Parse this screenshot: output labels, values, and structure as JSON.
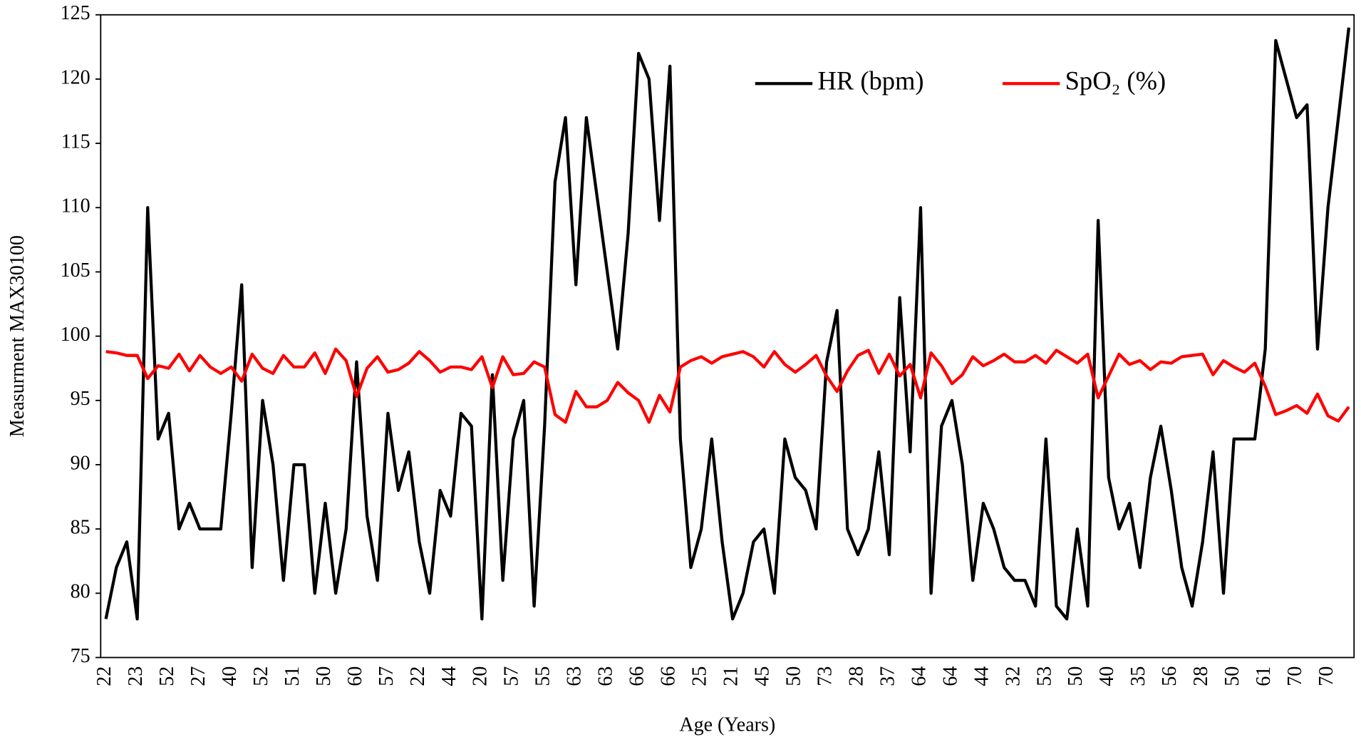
{
  "chart_data": {
    "type": "line",
    "x_label": "Age (Years)",
    "y_label": "Measurment MAX30100",
    "categories": [
      "22",
      null,
      null,
      "23",
      null,
      null,
      "52",
      null,
      null,
      "27",
      null,
      null,
      "40",
      null,
      null,
      "52",
      null,
      null,
      "51",
      null,
      null,
      "50",
      null,
      null,
      "60",
      null,
      null,
      "57",
      null,
      null,
      "22",
      null,
      null,
      "44",
      null,
      null,
      "20",
      null,
      null,
      "57",
      null,
      null,
      "55",
      null,
      null,
      "63",
      null,
      null,
      "63",
      null,
      null,
      "66",
      null,
      null,
      "66",
      null,
      null,
      "25",
      null,
      null,
      "21",
      null,
      null,
      "45",
      null,
      null,
      "50",
      null,
      null,
      "73",
      null,
      null,
      "28",
      null,
      null,
      "37",
      null,
      null,
      "64",
      null,
      null,
      "64",
      null,
      null,
      "44",
      null,
      null,
      "32",
      null,
      null,
      "53",
      null,
      null,
      "50",
      null,
      null,
      "40",
      null,
      null,
      "35",
      null,
      null,
      "56",
      null,
      null,
      "28",
      null,
      null,
      "50",
      null,
      null,
      "61",
      null,
      null,
      "70",
      null,
      null,
      "70",
      null,
      null
    ],
    "series": [
      {
        "name": "HR (bpm)",
        "color": "#000000",
        "values": [
          78,
          82,
          84,
          78,
          110,
          92,
          94,
          85,
          87,
          85,
          85,
          85,
          94,
          104,
          82,
          95,
          90,
          81,
          90,
          90,
          80,
          87,
          80,
          85,
          98,
          86,
          81,
          94,
          88,
          91,
          84,
          80,
          88,
          86,
          94,
          93,
          78,
          97,
          81,
          92,
          95,
          79,
          93,
          112,
          117,
          104,
          117,
          111,
          105,
          99,
          108,
          122,
          120,
          109,
          121,
          92,
          82,
          85,
          92,
          84,
          78,
          80,
          84,
          85,
          80,
          92,
          89,
          88,
          85,
          98,
          102,
          85,
          83,
          85,
          91,
          83,
          103,
          91,
          110,
          80,
          93,
          95,
          90,
          81,
          87,
          85,
          82,
          81,
          81,
          79,
          92,
          79,
          78,
          85,
          79,
          109,
          89,
          85,
          87,
          82,
          89,
          93,
          88,
          82,
          79,
          84,
          91,
          80,
          92,
          92,
          92,
          99,
          123,
          120,
          117,
          118,
          99,
          110,
          117,
          124
        ]
      },
      {
        "name": "SpO₂ (%)",
        "color": "#ff0000",
        "values": [
          98.8,
          98.7,
          98.5,
          98.5,
          96.7,
          97.7,
          97.5,
          98.6,
          97.3,
          98.5,
          97.6,
          97.1,
          97.6,
          96.5,
          98.6,
          97.5,
          97.1,
          98.5,
          97.6,
          97.6,
          98.7,
          97.1,
          99.0,
          98.1,
          95.3,
          97.5,
          98.4,
          97.2,
          97.4,
          97.9,
          98.8,
          98.1,
          97.2,
          97.6,
          97.6,
          97.4,
          98.4,
          96.0,
          98.4,
          97.0,
          97.1,
          98.0,
          97.6,
          93.9,
          93.3,
          95.7,
          94.5,
          94.5,
          95.0,
          96.4,
          95.6,
          95.0,
          93.3,
          95.4,
          94.1,
          97.6,
          98.1,
          98.4,
          97.9,
          98.4,
          98.6,
          98.8,
          98.4,
          97.6,
          98.8,
          97.8,
          97.2,
          97.8,
          98.5,
          96.9,
          95.7,
          97.3,
          98.5,
          98.9,
          97.1,
          98.6,
          96.9,
          97.8,
          95.2,
          98.7,
          97.7,
          96.3,
          97.0,
          98.4,
          97.7,
          98.1,
          98.6,
          98.0,
          98.0,
          98.5,
          97.9,
          98.9,
          98.4,
          97.9,
          98.6,
          95.2,
          96.9,
          98.6,
          97.8,
          98.1,
          97.4,
          98.0,
          97.9,
          98.4,
          98.5,
          98.6,
          97.0,
          98.1,
          97.6,
          97.2,
          97.9,
          96.1,
          93.9,
          94.2,
          94.6,
          94.0,
          95.5,
          93.8,
          93.4,
          94.5
        ]
      }
    ],
    "ylim": [
      75,
      125
    ],
    "yticks": [
      75,
      80,
      85,
      90,
      95,
      100,
      105,
      110,
      115,
      120,
      125
    ],
    "grid": false,
    "legend": "top-right"
  }
}
